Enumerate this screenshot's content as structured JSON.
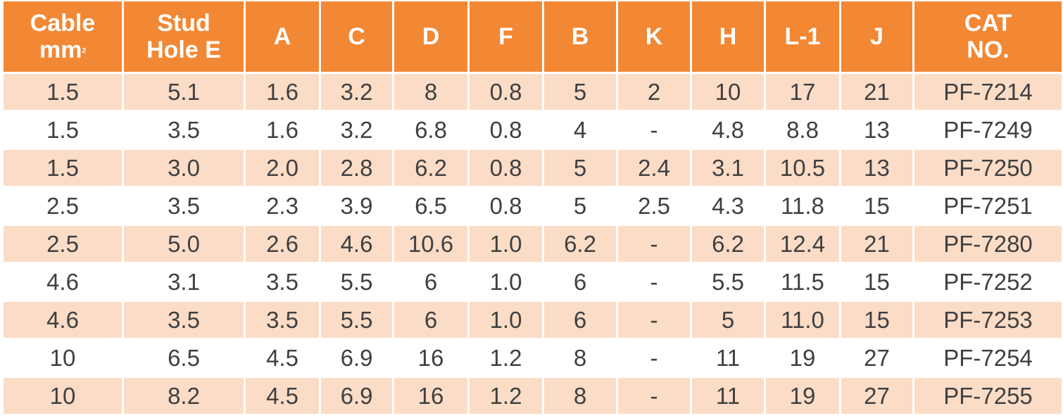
{
  "table": {
    "header": {
      "cable_line1": "Cable",
      "cable_line2": "mm",
      "cable_sup": "2",
      "stud_line1": "Stud",
      "stud_line2": "Hole E",
      "a": "A",
      "c": "C",
      "d": "D",
      "f": "F",
      "b": "B",
      "k": "K",
      "h": "H",
      "l1": "L-1",
      "j": "J",
      "cat_line1": "CAT",
      "cat_line2": "NO."
    },
    "rows": [
      {
        "cable": "1.5",
        "stud": "5.1",
        "a": "1.6",
        "c": "3.2",
        "d": "8",
        "f": "0.8",
        "b": "5",
        "k": "2",
        "h": "10",
        "l1": "17",
        "j": "21",
        "cat": "PF-7214"
      },
      {
        "cable": "1.5",
        "stud": "3.5",
        "a": "1.6",
        "c": "3.2",
        "d": "6.8",
        "f": "0.8",
        "b": "4",
        "k": "-",
        "h": "4.8",
        "l1": "8.8",
        "j": "13",
        "cat": "PF-7249"
      },
      {
        "cable": "1.5",
        "stud": "3.0",
        "a": "2.0",
        "c": "2.8",
        "d": "6.2",
        "f": "0.8",
        "b": "5",
        "k": "2.4",
        "h": "3.1",
        "l1": "10.5",
        "j": "13",
        "cat": "PF-7250"
      },
      {
        "cable": "2.5",
        "stud": "3.5",
        "a": "2.3",
        "c": "3.9",
        "d": "6.5",
        "f": "0.8",
        "b": "5",
        "k": "2.5",
        "h": "4.3",
        "l1": "11.8",
        "j": "15",
        "cat": "PF-7251"
      },
      {
        "cable": "2.5",
        "stud": "5.0",
        "a": "2.6",
        "c": "4.6",
        "d": "10.6",
        "f": "1.0",
        "b": "6.2",
        "k": "-",
        "h": "6.2",
        "l1": "12.4",
        "j": "21",
        "cat": "PF-7280"
      },
      {
        "cable": "4.6",
        "stud": "3.1",
        "a": "3.5",
        "c": "5.5",
        "d": "6",
        "f": "1.0",
        "b": "6",
        "k": "-",
        "h": "5.5",
        "l1": "11.5",
        "j": "15",
        "cat": "PF-7252"
      },
      {
        "cable": "4.6",
        "stud": "3.5",
        "a": "3.5",
        "c": "5.5",
        "d": "6",
        "f": "1.0",
        "b": "6",
        "k": "-",
        "h": "5",
        "l1": "11.0",
        "j": "15",
        "cat": "PF-7253"
      },
      {
        "cable": "10",
        "stud": "6.5",
        "a": "4.5",
        "c": "6.9",
        "d": "16",
        "f": "1.2",
        "b": "8",
        "k": "-",
        "h": "11",
        "l1": "19",
        "j": "27",
        "cat": "PF-7254"
      },
      {
        "cable": "10",
        "stud": "8.2",
        "a": "4.5",
        "c": "6.9",
        "d": "16",
        "f": "1.2",
        "b": "8",
        "k": "-",
        "h": "11",
        "l1": "19",
        "j": "27",
        "cat": "PF-7255"
      }
    ]
  },
  "colors": {
    "header_bg": "#f28734",
    "header_text": "#ffffff",
    "shaded_row_bg": "#fbdcc6",
    "plain_row_bg": "#ffffff",
    "cell_text": "#404040"
  }
}
